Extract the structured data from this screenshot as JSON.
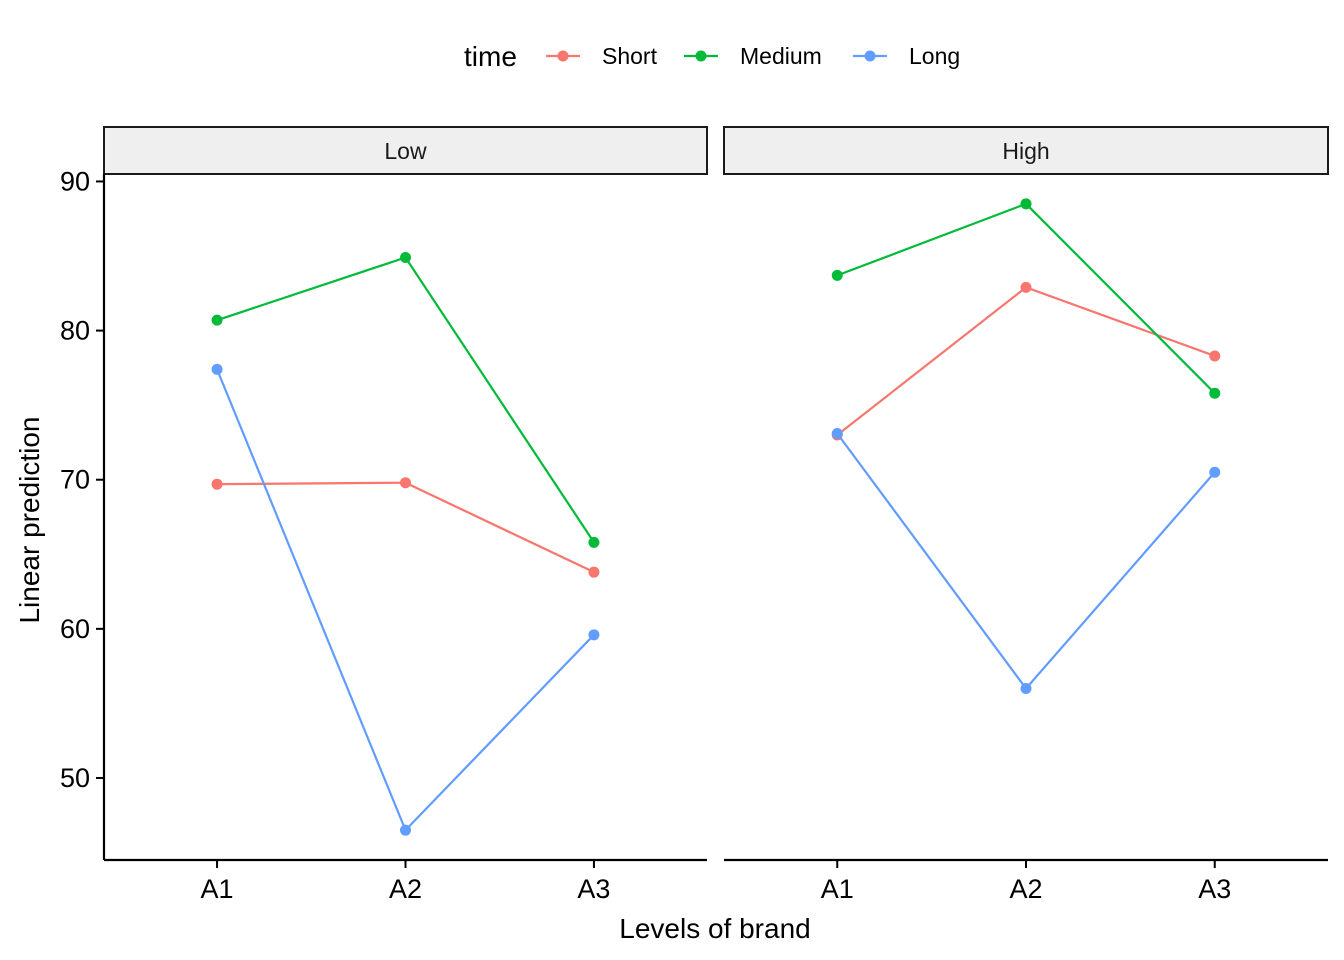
{
  "chart_data": {
    "type": "line",
    "xlabel": "Levels of brand",
    "ylabel": "Linear prediction",
    "legend": {
      "title": "time",
      "position": "top"
    },
    "categories": [
      "A1",
      "A2",
      "A3"
    ],
    "ylim": [
      44.5,
      90.5
    ],
    "yticks": [
      50,
      60,
      70,
      80,
      90
    ],
    "grid": false,
    "panels": [
      {
        "label": "Low",
        "series": [
          {
            "name": "Short",
            "color": "#F8766D",
            "values": [
              69.7,
              69.8,
              63.8
            ]
          },
          {
            "name": "Medium",
            "color": "#00BA38",
            "values": [
              80.7,
              84.9,
              65.8
            ]
          },
          {
            "name": "Long",
            "color": "#619CFF",
            "values": [
              77.4,
              46.5,
              59.6
            ]
          }
        ]
      },
      {
        "label": "High",
        "series": [
          {
            "name": "Short",
            "color": "#F8766D",
            "values": [
              73.0,
              82.9,
              78.3
            ]
          },
          {
            "name": "Medium",
            "color": "#00BA38",
            "values": [
              83.7,
              88.5,
              75.8
            ]
          },
          {
            "name": "Long",
            "color": "#619CFF",
            "values": [
              73.1,
              56.0,
              70.5
            ]
          }
        ]
      }
    ]
  }
}
